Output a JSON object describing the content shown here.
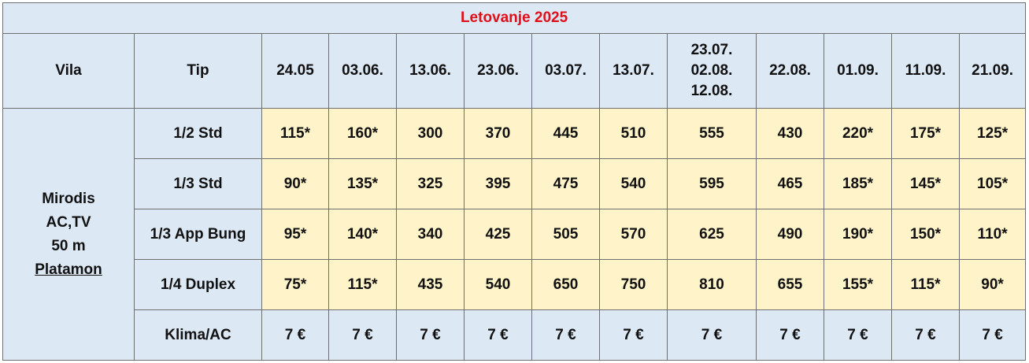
{
  "title": "Letovanje 2025",
  "headers": {
    "vila": "Vila",
    "tip": "Tip",
    "dates": [
      [
        "24.05"
      ],
      [
        "03.06."
      ],
      [
        "13.06."
      ],
      [
        "23.06."
      ],
      [
        "03.07."
      ],
      [
        "13.07."
      ],
      [
        "23.07.",
        "02.08.",
        "12.08."
      ],
      [
        "22.08."
      ],
      [
        "01.09."
      ],
      [
        "11.09."
      ],
      [
        "21.09."
      ]
    ]
  },
  "villa": {
    "name": "Mirodis",
    "amenities": "AC,TV",
    "distance": "50 m",
    "location": "Platamon"
  },
  "rows": [
    {
      "type": "1/2 Std",
      "values": [
        "115*",
        "160*",
        "300",
        "370",
        "445",
        "510",
        "555",
        "430",
        "220*",
        "175*",
        "125*"
      ]
    },
    {
      "type": "1/3 Std",
      "values": [
        "90*",
        "135*",
        "325",
        "395",
        "475",
        "540",
        "595",
        "465",
        "185*",
        "145*",
        "105*"
      ]
    },
    {
      "type": "1/3 App Bung",
      "values": [
        "95*",
        "140*",
        "340",
        "425",
        "505",
        "570",
        "625",
        "490",
        "190*",
        "150*",
        "110*"
      ]
    },
    {
      "type": "1/4 Duplex",
      "values": [
        "75*",
        "115*",
        "435",
        "540",
        "650",
        "750",
        "810",
        "655",
        "155*",
        "115*",
        "90*"
      ]
    }
  ],
  "klima": {
    "label": "Klima/AC",
    "values": [
      "7 €",
      "7 €",
      "7 €",
      "7 €",
      "7 €",
      "7 €",
      "7 €",
      "7 €",
      "7 €",
      "7 €",
      "7 €"
    ]
  },
  "colors": {
    "header_bg": "#dde8f5",
    "value_bg": "#fff3c9",
    "title_text": "#e0101a",
    "border": "#6f6f6f"
  }
}
